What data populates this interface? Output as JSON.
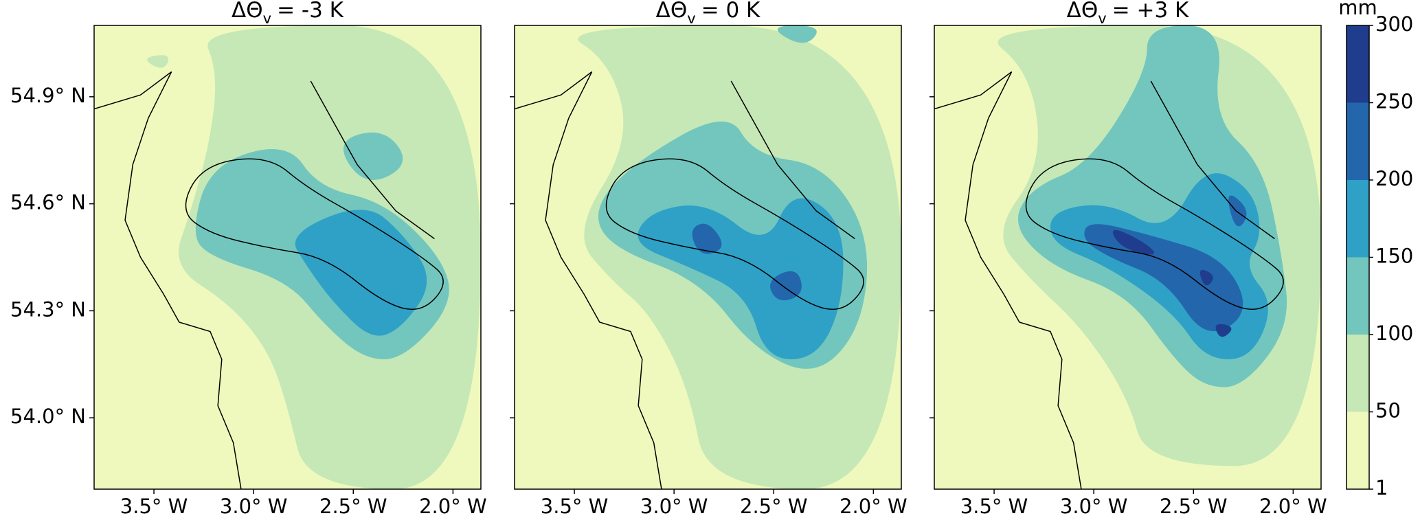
{
  "chart_data": [
    {
      "type": "contour",
      "title": {
        "symbol": "ΔΘ",
        "subscript": "v",
        "rest": "= -3 K"
      },
      "xlim": [
        -3.8,
        -1.86
      ],
      "ylim": [
        53.8,
        55.1
      ],
      "xticks": [
        {
          "value": -3.5,
          "label": "3.5° W"
        },
        {
          "value": -3.0,
          "label": "3.0° W"
        },
        {
          "value": -2.5,
          "label": "2.5° W"
        },
        {
          "value": -2.0,
          "label": "2.0° W"
        }
      ],
      "yticks": [
        {
          "value": 54.0,
          "label": "54.0° N"
        },
        {
          "value": 54.3,
          "label": "54.3° N"
        },
        {
          "value": 54.6,
          "label": "54.6° N"
        },
        {
          "value": 54.9,
          "label": "54.9° N"
        }
      ]
    },
    {
      "type": "contour",
      "title": {
        "symbol": "ΔΘ",
        "subscript": "v",
        "rest": "= 0 K"
      },
      "xlim": [
        -3.8,
        -1.86
      ],
      "ylim": [
        53.8,
        55.1
      ],
      "xticks": [
        {
          "value": -3.5,
          "label": "3.5° W"
        },
        {
          "value": -3.0,
          "label": "3.0° W"
        },
        {
          "value": -2.5,
          "label": "2.5° W"
        },
        {
          "value": -2.0,
          "label": "2.0° W"
        }
      ],
      "yticks": [
        54.0,
        54.3,
        54.6,
        54.9
      ]
    },
    {
      "type": "contour",
      "title": {
        "symbol": "ΔΘ",
        "subscript": "v",
        "rest": "= +3 K"
      },
      "xlim": [
        -3.8,
        -1.86
      ],
      "ylim": [
        53.8,
        55.1
      ],
      "xticks": [
        {
          "value": -3.5,
          "label": "3.5° W"
        },
        {
          "value": -3.0,
          "label": "3.0° W"
        },
        {
          "value": -2.5,
          "label": "2.5° W"
        },
        {
          "value": -2.0,
          "label": "2.0° W"
        }
      ],
      "yticks": [
        54.0,
        54.3,
        54.6,
        54.9
      ]
    }
  ],
  "colorbar": {
    "label": "mm",
    "levels": [
      1,
      50,
      100,
      150,
      200,
      250,
      300
    ],
    "colors": [
      "#eff9bd",
      "#c5e8b6",
      "#73c6bd",
      "#2fa1c6",
      "#2366ac",
      "#1f3d8c"
    ]
  }
}
